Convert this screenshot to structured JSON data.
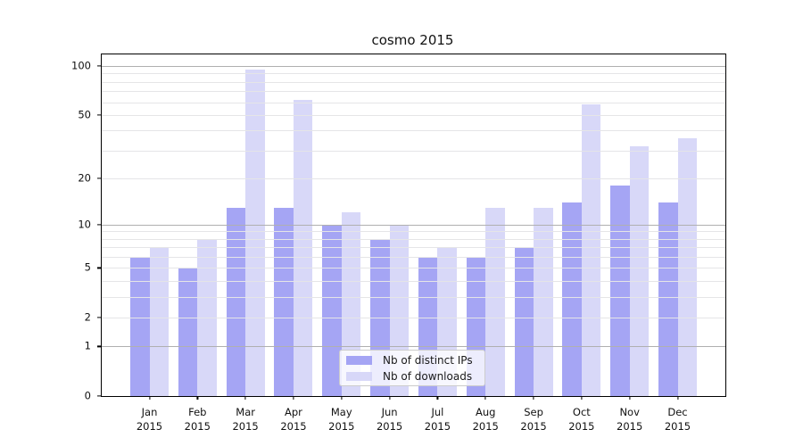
{
  "title": "cosmo 2015",
  "chart_data": {
    "type": "bar",
    "title": "cosmo 2015",
    "categories": [
      "Jan 2015",
      "Feb 2015",
      "Mar 2015",
      "Apr 2015",
      "May 2015",
      "Jun 2015",
      "Jul 2015",
      "Aug 2015",
      "Sep 2015",
      "Oct 2015",
      "Nov 2015",
      "Dec 2015"
    ],
    "months": [
      "Jan",
      "Feb",
      "Mar",
      "Apr",
      "May",
      "Jun",
      "Jul",
      "Aug",
      "Sep",
      "Oct",
      "Nov",
      "Dec"
    ],
    "year": "2015",
    "series": [
      {
        "name": "Nb of distinct IPs",
        "color": "#9595f2",
        "values": [
          6,
          5,
          13,
          13,
          10,
          8,
          6,
          6,
          7,
          14,
          18,
          14
        ]
      },
      {
        "name": "Nb of downloads",
        "color": "#d1d1f7",
        "values": [
          7,
          8,
          95,
          62,
          12,
          10,
          7,
          13,
          13,
          58,
          32,
          36
        ]
      }
    ],
    "xlabel": "",
    "ylabel": "",
    "y_scale": "log1p",
    "ylim": [
      0,
      118
    ],
    "y_ticks": [
      100,
      50,
      20,
      10,
      5,
      2,
      1,
      0
    ],
    "major_gridlines": [
      1,
      10,
      100
    ],
    "minor_gridlines": [
      2,
      3,
      4,
      5,
      6,
      7,
      8,
      9,
      20,
      30,
      40,
      50,
      60,
      70,
      80,
      90
    ],
    "grid": "on",
    "legend_position": "lower center",
    "bar_alpha": 0.85,
    "colors": {
      "axis": "#000000",
      "major_grid": "#b0b0b0",
      "minor_grid": "#e5e5e7",
      "text": "#111111"
    }
  }
}
